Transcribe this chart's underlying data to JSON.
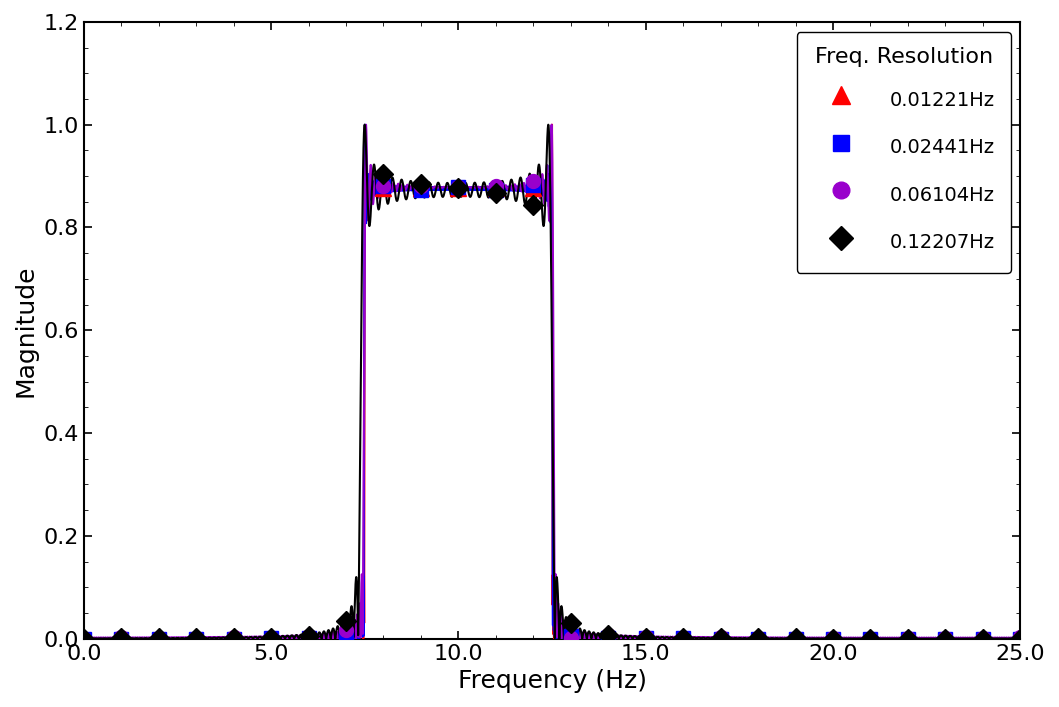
{
  "title": "",
  "xlabel": "Frequency (Hz)",
  "ylabel": "Magnitude",
  "xlim": [
    0.0,
    25.0
  ],
  "ylim": [
    0.0,
    1.2
  ],
  "xticks": [
    0.0,
    5.0,
    10.0,
    15.0,
    20.0,
    25.0
  ],
  "yticks": [
    0.0,
    0.2,
    0.4,
    0.6,
    0.8,
    1.0,
    1.2
  ],
  "legend_title": "Freq. Resolution",
  "series": [
    {
      "label": "0.01221Hz",
      "color": "#FF0000",
      "marker": "^",
      "markersize": 11,
      "linewidth": 1.5,
      "freq_res": 0.01221,
      "marker_color": "#FF0000"
    },
    {
      "label": "0.02441Hz",
      "color": "#0000FF",
      "marker": "s",
      "markersize": 10,
      "linewidth": 1.5,
      "freq_res": 0.02441,
      "marker_color": "#0000FF"
    },
    {
      "label": "0.06104Hz",
      "color": "#9900CC",
      "marker": "o",
      "markersize": 10,
      "linewidth": 1.5,
      "freq_res": 0.06104,
      "marker_color": "#9900CC"
    },
    {
      "label": "0.12207Hz",
      "color": "#000000",
      "marker": "D",
      "markersize": 10,
      "linewidth": 1.5,
      "freq_res": 0.12207,
      "marker_color": "#000000"
    }
  ],
  "passband_low": 7.5,
  "passband_high": 12.5,
  "fs": 25.0,
  "background_color": "#FFFFFF",
  "legend_fontsize": 16,
  "axis_label_fontsize": 18,
  "tick_fontsize": 16
}
